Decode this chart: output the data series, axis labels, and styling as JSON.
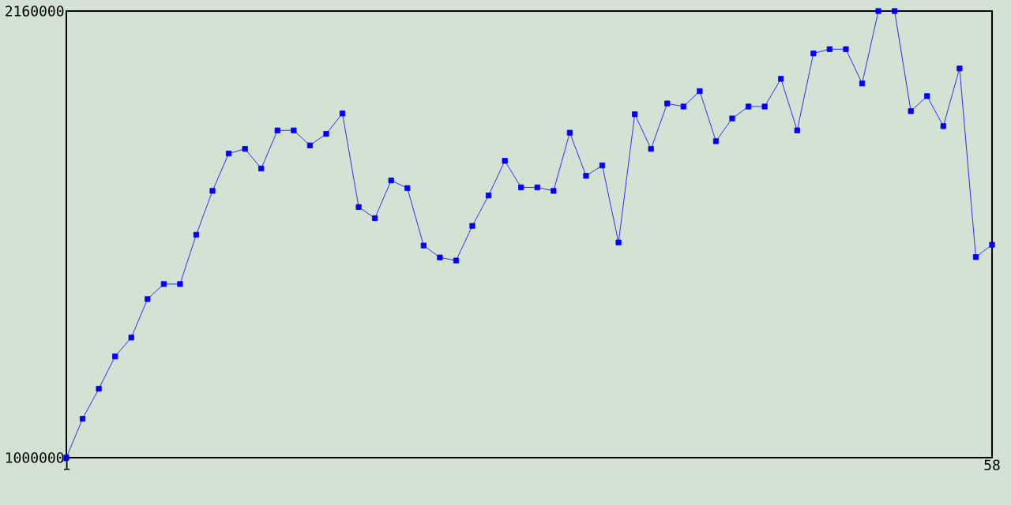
{
  "chart_data": {
    "type": "line",
    "x": [
      1,
      2,
      3,
      4,
      5,
      6,
      7,
      8,
      9,
      10,
      11,
      12,
      13,
      14,
      15,
      16,
      17,
      18,
      19,
      20,
      21,
      22,
      23,
      24,
      25,
      26,
      27,
      28,
      29,
      30,
      31,
      32,
      33,
      34,
      35,
      36,
      37,
      38,
      39,
      40,
      41,
      42,
      43,
      44,
      45,
      46,
      47,
      48,
      49,
      50,
      51,
      52,
      53,
      54,
      55,
      56,
      57,
      58
    ],
    "series": [
      {
        "color": "#0000ff",
        "values": [
          1000000,
          1101000,
          1179000,
          1263000,
          1312000,
          1412000,
          1451000,
          1451000,
          1579000,
          1693000,
          1790000,
          1802000,
          1751000,
          1850000,
          1850000,
          1811000,
          1841000,
          1894000,
          1651000,
          1622000,
          1720000,
          1700000,
          1551000,
          1520000,
          1512000,
          1602000,
          1681000,
          1771000,
          1702000,
          1702000,
          1693000,
          1844000,
          1732000,
          1759000,
          1559000,
          1892000,
          1802000,
          1920000,
          1912000,
          1952000,
          1822000,
          1881000,
          1912000,
          1912000,
          1984000,
          1850000,
          2050000,
          2061000,
          2061000,
          1972000,
          2160000,
          2160000,
          1900000,
          1939000,
          1861000,
          2011000,
          1521000,
          1553000
        ]
      }
    ],
    "xlim": [
      1,
      58
    ],
    "xticks": [
      1,
      58
    ],
    "ylim": [
      1000000,
      2160000
    ],
    "yticks": [
      1000000,
      2160000
    ],
    "marker": "square"
  }
}
